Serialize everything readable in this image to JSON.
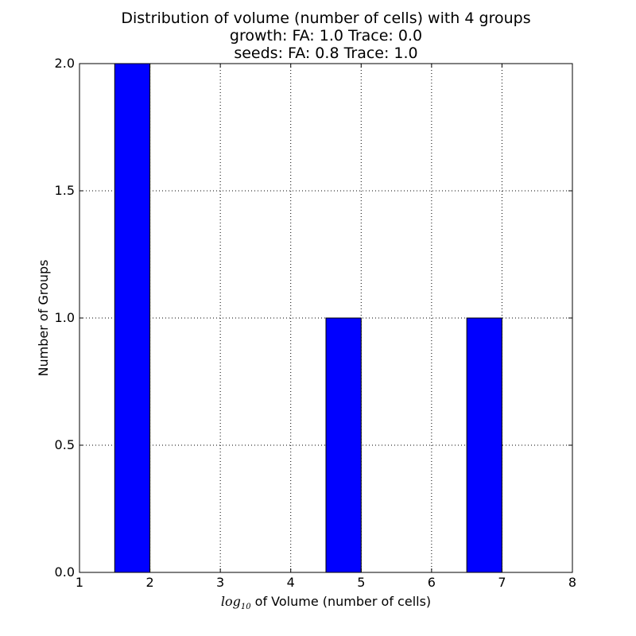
{
  "chart_data": {
    "type": "bar",
    "title_lines": [
      "Distribution of volume (number of cells) with 4 groups",
      "growth: FA: 1.0 Trace: 0.0",
      "seeds: FA: 0.8 Trace: 1.0"
    ],
    "xlabel_math": "log",
    "xlabel_sub": "10",
    "xlabel_text": " of Volume (number of cells)",
    "ylabel": "Number of Groups",
    "xlim": [
      1,
      8
    ],
    "ylim": [
      0,
      2
    ],
    "xticks": [
      "1",
      "2",
      "3",
      "4",
      "5",
      "6",
      "7",
      "8"
    ],
    "yticks": [
      "0.0",
      "0.5",
      "1.0",
      "1.5",
      "2.0"
    ],
    "grid": true,
    "bar_color": "#0000ff",
    "bars": [
      {
        "x0": 1.5,
        "x1": 2.0,
        "value": 2
      },
      {
        "x0": 4.5,
        "x1": 5.0,
        "value": 1
      },
      {
        "x0": 6.5,
        "x1": 7.0,
        "value": 1
      }
    ]
  }
}
